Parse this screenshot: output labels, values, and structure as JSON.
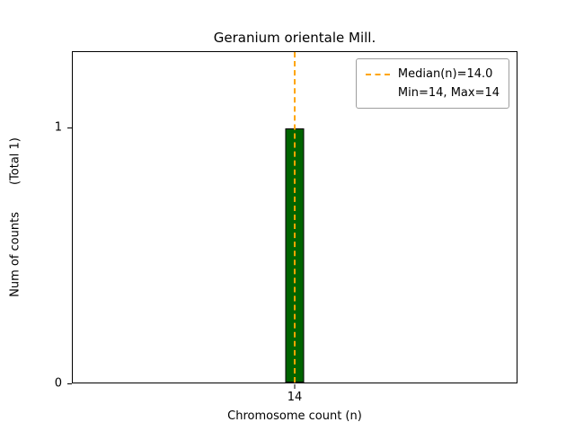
{
  "chart_data": {
    "type": "bar",
    "title": "Geranium orientale Mill.",
    "xlabel": "Chromosome count (n)",
    "ylabel": "Num of counts",
    "ylabel_secondary": "(Total 1)",
    "categories": [
      14
    ],
    "values": [
      1
    ],
    "total_counts": 1,
    "ylim": [
      0,
      1.3
    ],
    "yticks": [
      0,
      1
    ],
    "xtick_labels": [
      "14"
    ],
    "median": 14.0,
    "min": 14,
    "max": 14,
    "grid": false,
    "bar_color": "#006400",
    "bar_edge_color": "#000000",
    "median_line_color": "#FFA500",
    "median_line_style": "dashed",
    "legend": {
      "position": "upper right",
      "entries": [
        {
          "label": "Median(n)=14.0",
          "marker": "dashed-line"
        },
        {
          "label": "Min=14, Max=14",
          "marker": "none"
        }
      ]
    }
  }
}
